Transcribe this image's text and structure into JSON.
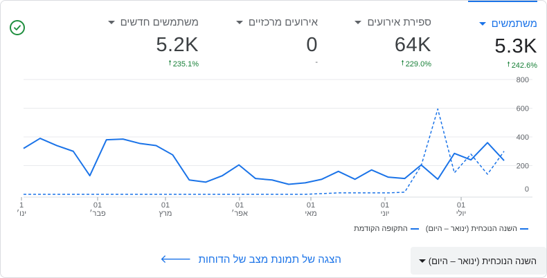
{
  "metrics": [
    {
      "label": "משתמשים",
      "value": "5.3K",
      "change": "242.6%",
      "selected": true
    },
    {
      "label": "ספירת אירועים",
      "value": "64K",
      "change": "229.0%",
      "selected": false
    },
    {
      "label": "אירועים מרכזיים",
      "value": "0",
      "change": "-",
      "selected": false
    },
    {
      "label": "משתמשים חדשים",
      "value": "5.2K",
      "change": "235.1%",
      "selected": false
    }
  ],
  "legend": {
    "current": "השנה הנוכחית (ינואר – היום)",
    "previous": "התקופה הקודמת"
  },
  "date_range": {
    "selected": "השנה הנוכחית (ינואר – היום)"
  },
  "snapshot_link": "הצגה של תמונת מצב של הדוחות",
  "colors": {
    "accent": "#1a73e8",
    "positive": "#188038"
  },
  "icons": {
    "status": "check-circle-icon",
    "change": "arrow-up-icon",
    "link": "arrow-left-icon"
  },
  "chart_data": {
    "type": "line",
    "x_ticks": [
      {
        "day": "1",
        "month": "ינו׳"
      },
      {
        "day": "01",
        "month": "פבר׳"
      },
      {
        "day": "01",
        "month": "מרץ"
      },
      {
        "day": "01",
        "month": "אפר׳"
      },
      {
        "day": "01",
        "month": "מאי"
      },
      {
        "day": "01",
        "month": "יוני"
      },
      {
        "day": "01",
        "month": "יולי"
      }
    ],
    "y_ticks": [
      "0",
      "200",
      "400",
      "600",
      "800"
    ],
    "ylim": [
      0,
      800
    ],
    "x_range": [
      0,
      30
    ],
    "series": [
      {
        "name": "השנה הנוכחית (ינואר – היום)",
        "style": "solid",
        "values": [
          320,
          390,
          340,
          300,
          130,
          380,
          385,
          355,
          340,
          275,
          100,
          85,
          130,
          205,
          110,
          100,
          70,
          80,
          105,
          160,
          105,
          170,
          120,
          110,
          205,
          105,
          285,
          240,
          360,
          235
        ]
      },
      {
        "name": "התקופה הקודמת",
        "style": "dashed",
        "values": [
          0,
          0,
          0,
          0,
          0,
          0,
          0,
          0,
          0,
          0,
          0,
          0,
          0,
          0,
          0,
          0,
          0,
          0,
          5,
          10,
          10,
          10,
          10,
          15,
          200,
          595,
          150,
          280,
          140,
          300
        ]
      }
    ],
    "grid": true
  }
}
